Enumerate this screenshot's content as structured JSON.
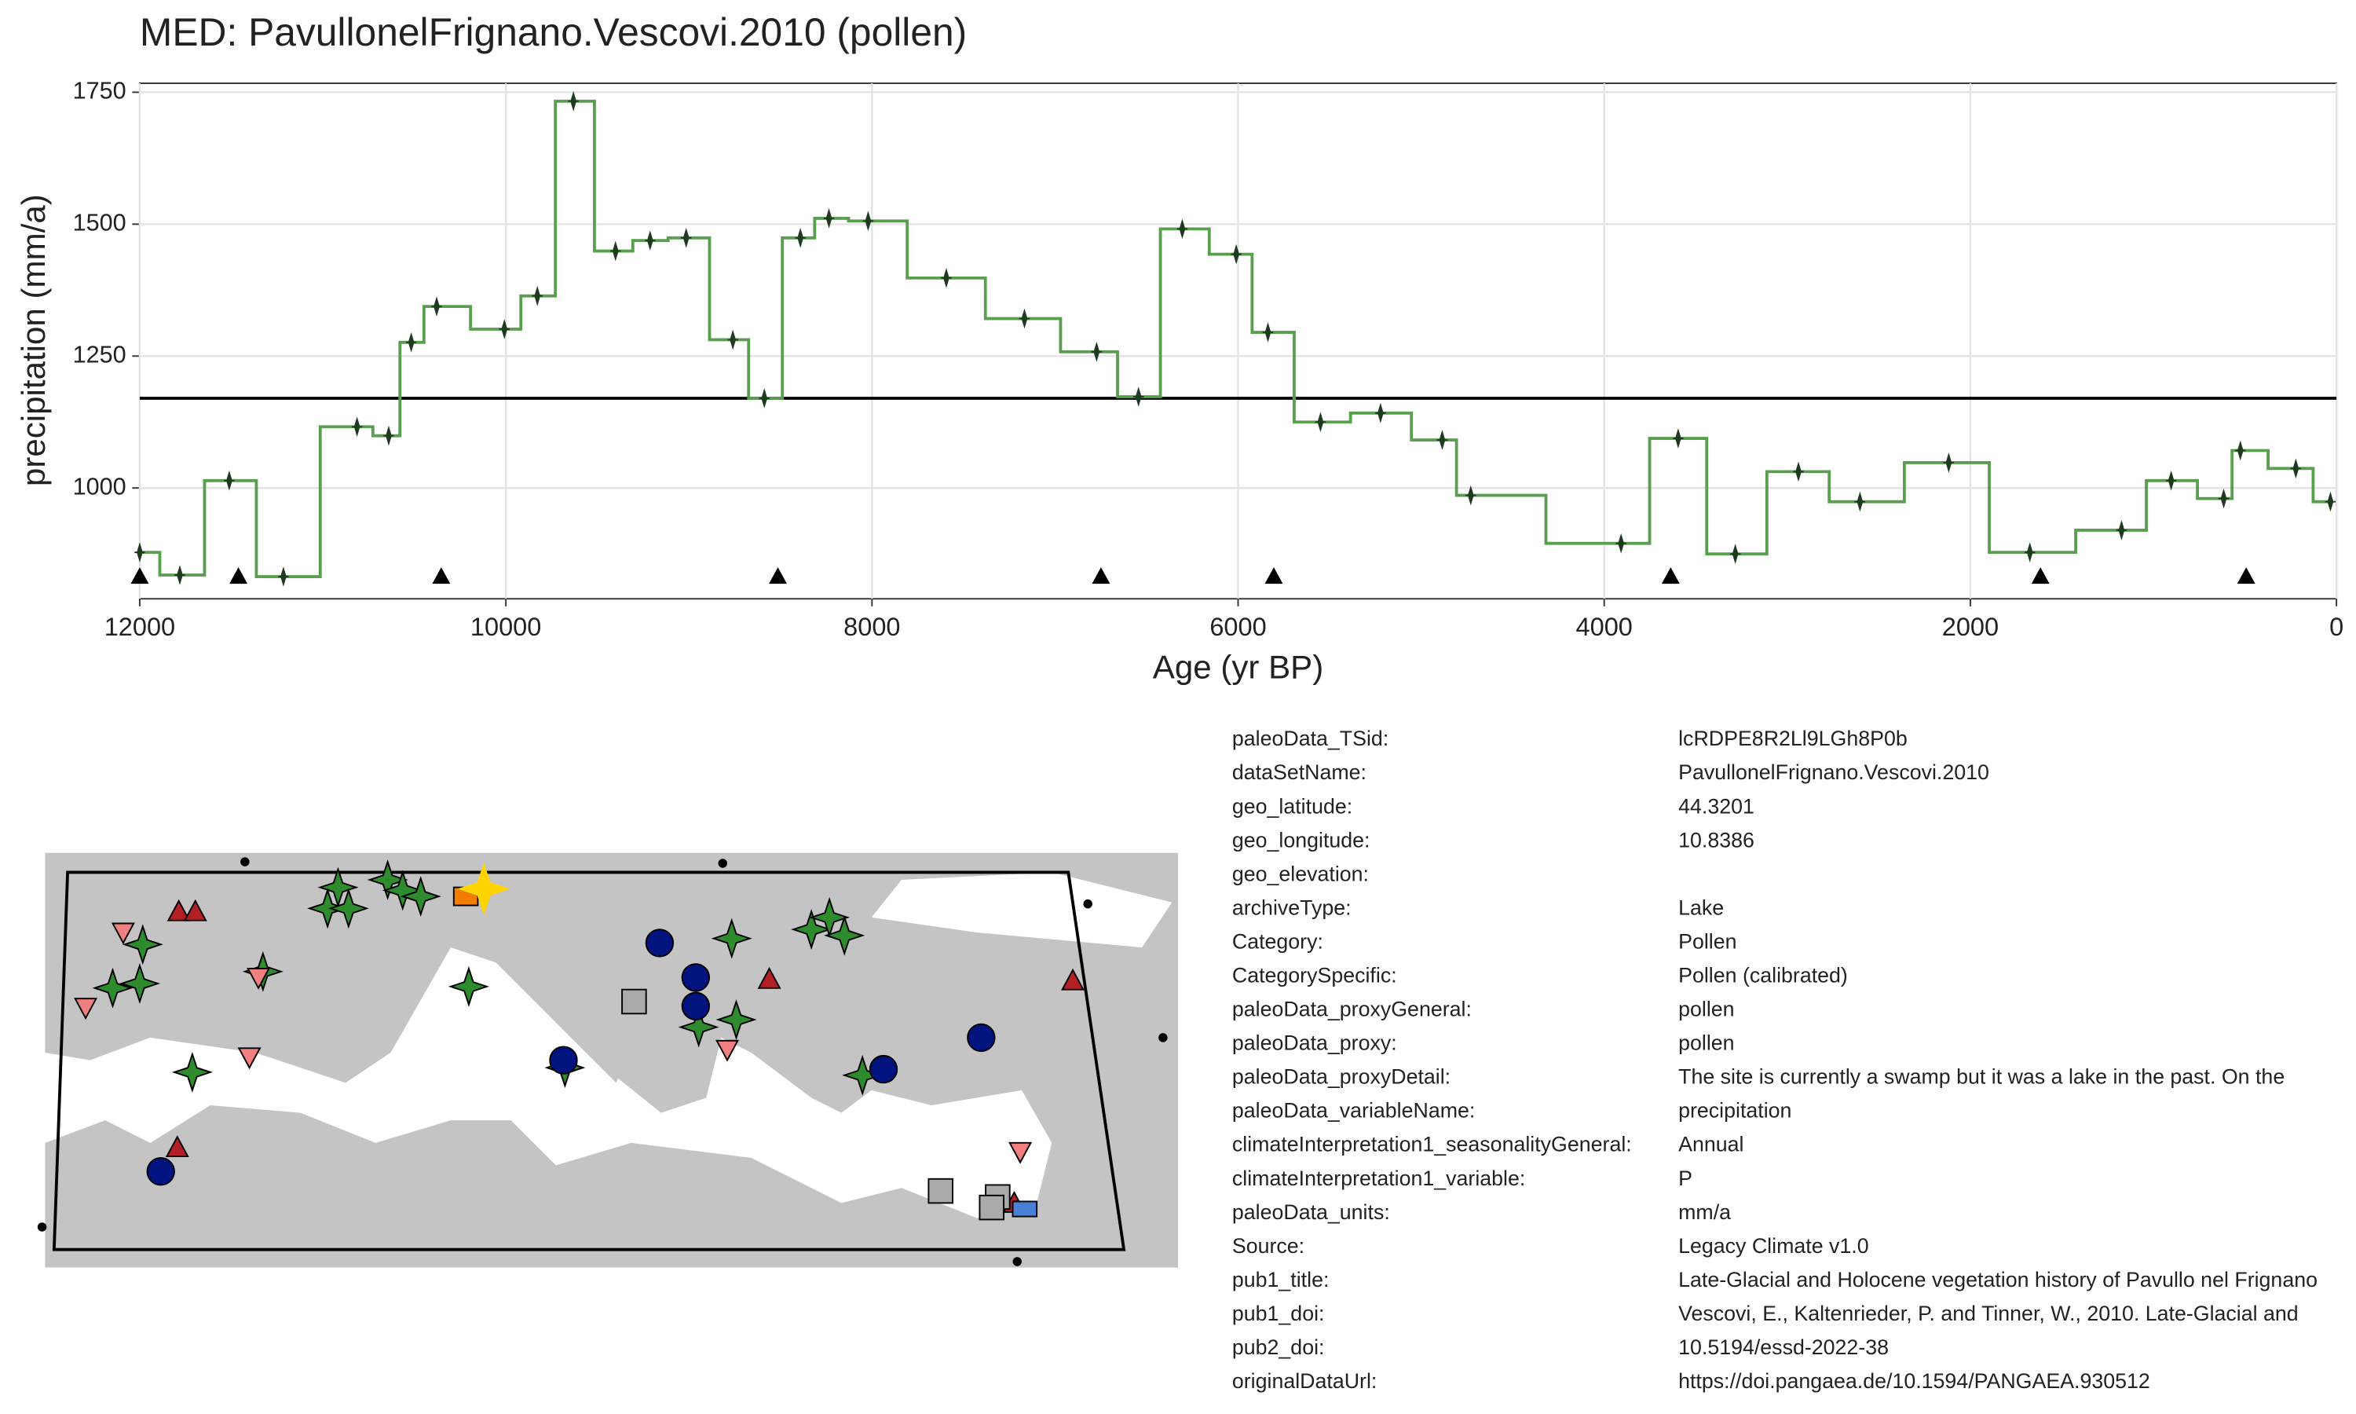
{
  "chart_data": {
    "type": "step",
    "title": "MED: PavullonelFrignano.Vescovi.2010 (pollen)",
    "xlabel": "Age (yr BP)",
    "ylabel": "precipitation (mm/a)",
    "xlim": [
      12000,
      0
    ],
    "xticks": [
      12000,
      10000,
      8000,
      6000,
      4000,
      2000,
      0
    ],
    "ylim": [
      790,
      1767
    ],
    "yticks": [
      1000,
      1250,
      1500,
      1750
    ],
    "grid": true,
    "series": [
      {
        "color": "#5a9e50",
        "point_color": "#1f3b1f",
        "x": [
          12000,
          11781,
          11511,
          11215,
          10813,
          10640,
          10517,
          10378,
          10008,
          9828,
          9631,
          9401,
          9212,
          9015,
          8760,
          8588,
          8391,
          8235,
          8021,
          7594,
          7167,
          6773,
          6544,
          6305,
          6010,
          5837,
          5550,
          5222,
          4885,
          4729,
          3908,
          3596,
          3284,
          2939,
          2603,
          2118,
          1675,
          1174,
          903,
          616,
          525,
          222,
          33
        ],
        "values": [
          878,
          835,
          1014,
          832,
          1116,
          1099,
          1276,
          1344,
          1301,
          1364,
          1733,
          1449,
          1469,
          1474,
          1281,
          1170,
          1474,
          1511,
          1506,
          1398,
          1321,
          1258,
          1173,
          1491,
          1443,
          1295,
          1125,
          1142,
          1091,
          986,
          895,
          1094,
          875,
          1031,
          974,
          1048,
          878,
          920,
          1014,
          980,
          1071,
          1037,
          974
        ]
      }
    ],
    "reference_line": 1170,
    "age_markers": [
      12000,
      11461,
      10353,
      8514,
      6749,
      5805,
      3637,
      1617,
      493
    ]
  },
  "metadata": {
    "rows": [
      [
        "paleoData_TSid:",
        "lcRDPE8R2Ll9LGh8P0b"
      ],
      [
        "dataSetName:",
        "PavullonelFrignano.Vescovi.2010"
      ],
      [
        "geo_latitude:",
        "44.3201"
      ],
      [
        "geo_longitude:",
        "10.8386"
      ],
      [
        "geo_elevation:",
        ""
      ],
      [
        "archiveType:",
        "Lake"
      ],
      [
        "Category:",
        "Pollen"
      ],
      [
        "CategorySpecific:",
        "Pollen (calibrated)"
      ],
      [
        "paleoData_proxyGeneral:",
        "pollen"
      ],
      [
        "paleoData_proxy:",
        "pollen"
      ],
      [
        "paleoData_proxyDetail:",
        "The site is currently a swamp but it was a lake in the past. On the"
      ],
      [
        "paleoData_variableName:",
        "precipitation"
      ],
      [
        "climateInterpretation1_seasonalityGeneral:",
        "Annual"
      ],
      [
        "climateInterpretation1_variable:",
        "P"
      ],
      [
        "paleoData_units:",
        "mm/a"
      ],
      [
        "Source:",
        "Legacy Climate v1.0"
      ],
      [
        "pub1_title:",
        "Late-Glacial and Holocene vegetation history of Pavullo nel Frignano"
      ],
      [
        "pub1_doi:",
        "Vescovi, E., Kaltenrieder, P. and Tinner, W., 2010. Late-Glacial and"
      ],
      [
        "pub2_doi:",
        "10.5194/essd-2022-38"
      ],
      [
        "originalDataUrl:",
        "https://doi.pangaea.de/10.1594/PANGAEA.930512"
      ]
    ]
  }
}
